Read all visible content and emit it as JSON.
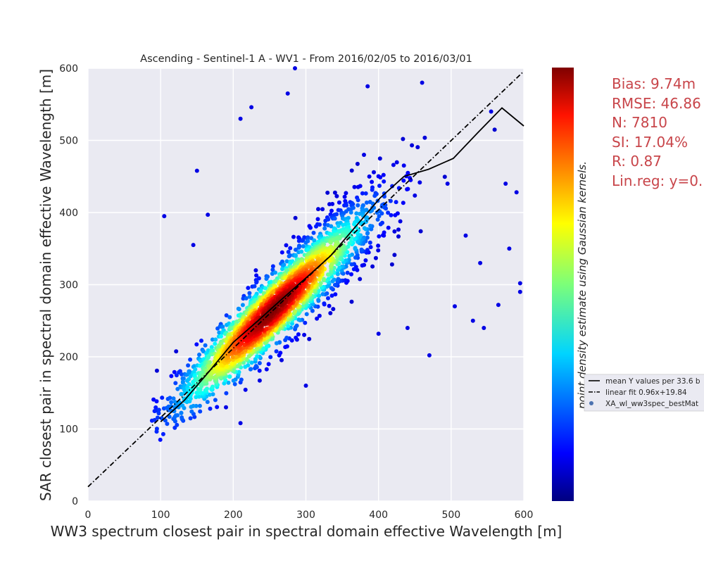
{
  "stats": {
    "lines": [
      "Bias: 9.74m",
      "RMSE: 46.86",
      "N: 7810",
      "SI: 17.04%",
      "R: 0.87",
      "Lin.reg: y=0."
    ]
  },
  "colors": {
    "axes_bg": "#eaeaf2",
    "grid": "#ffffff",
    "mean_line": "#000000",
    "fit_line": "#000000",
    "stats_text": "#c8454a",
    "point_legend": "#4c72b0"
  },
  "chart_data": {
    "type": "scatter",
    "title": "Ascending - Sentinel-1 A - WV1 - From 2016/02/05 to 2016/03/01",
    "xlabel": "WW3 spectrum closest pair in spectral domain effective Wavelength [m]",
    "ylabel": "SAR closest pair in spectral domain effective Wavelength [m]",
    "xlim": [
      0,
      600
    ],
    "ylim": [
      0,
      600
    ],
    "xticks": [
      0,
      100,
      200,
      300,
      400,
      500,
      600
    ],
    "yticks": [
      0,
      100,
      200,
      300,
      400,
      500,
      600
    ],
    "grid": true,
    "colormap": "jet",
    "colorbar_label": "point density estimate using Gaussian kernels.",
    "legend": {
      "placement": "right-middle",
      "entries": [
        "mean Y values per 33.6 b",
        "linear fit 0.96x+19.84",
        "XA_wl_ww3spec_bestMat"
      ]
    },
    "n_points": 7810,
    "point_cloud": {
      "center": [
        260,
        255
      ],
      "slope": 0.96,
      "intercept": 19.84,
      "x_range": [
        88,
        600
      ],
      "core_density_peak": [
        255,
        255
      ]
    },
    "series": [
      {
        "name": "mean Y values per 33.6 b",
        "style": "solid",
        "x": [
          100,
          133,
          167,
          200,
          234,
          267,
          301,
          334,
          368,
          402,
          435,
          469,
          503,
          536,
          570,
          600
        ],
        "y": [
          110,
          140,
          180,
          220,
          250,
          280,
          310,
          340,
          380,
          420,
          450,
          460,
          475,
          510,
          545,
          520
        ]
      },
      {
        "name": "linear fit 0.96x+19.84",
        "style": "dashdot",
        "x": [
          0,
          600
        ],
        "y": [
          19.84,
          595.84
        ]
      }
    ],
    "outliers": [
      [
        285,
        600
      ],
      [
        225,
        546
      ],
      [
        210,
        530
      ],
      [
        150,
        458
      ],
      [
        105,
        395
      ],
      [
        165,
        397
      ],
      [
        540,
        330
      ],
      [
        545,
        240
      ],
      [
        565,
        272
      ],
      [
        580,
        350
      ],
      [
        595,
        302
      ],
      [
        595,
        290
      ],
      [
        470,
        202
      ],
      [
        440,
        240
      ],
      [
        400,
        232
      ],
      [
        300,
        160
      ],
      [
        210,
        108
      ],
      [
        190,
        130
      ],
      [
        520,
        368
      ],
      [
        530,
        250
      ],
      [
        505,
        270
      ],
      [
        495,
        440
      ],
      [
        590,
        428
      ],
      [
        575,
        440
      ],
      [
        385,
        575
      ],
      [
        555,
        540
      ],
      [
        275,
        565
      ],
      [
        145,
        355
      ],
      [
        380,
        480
      ],
      [
        460,
        580
      ]
    ]
  }
}
